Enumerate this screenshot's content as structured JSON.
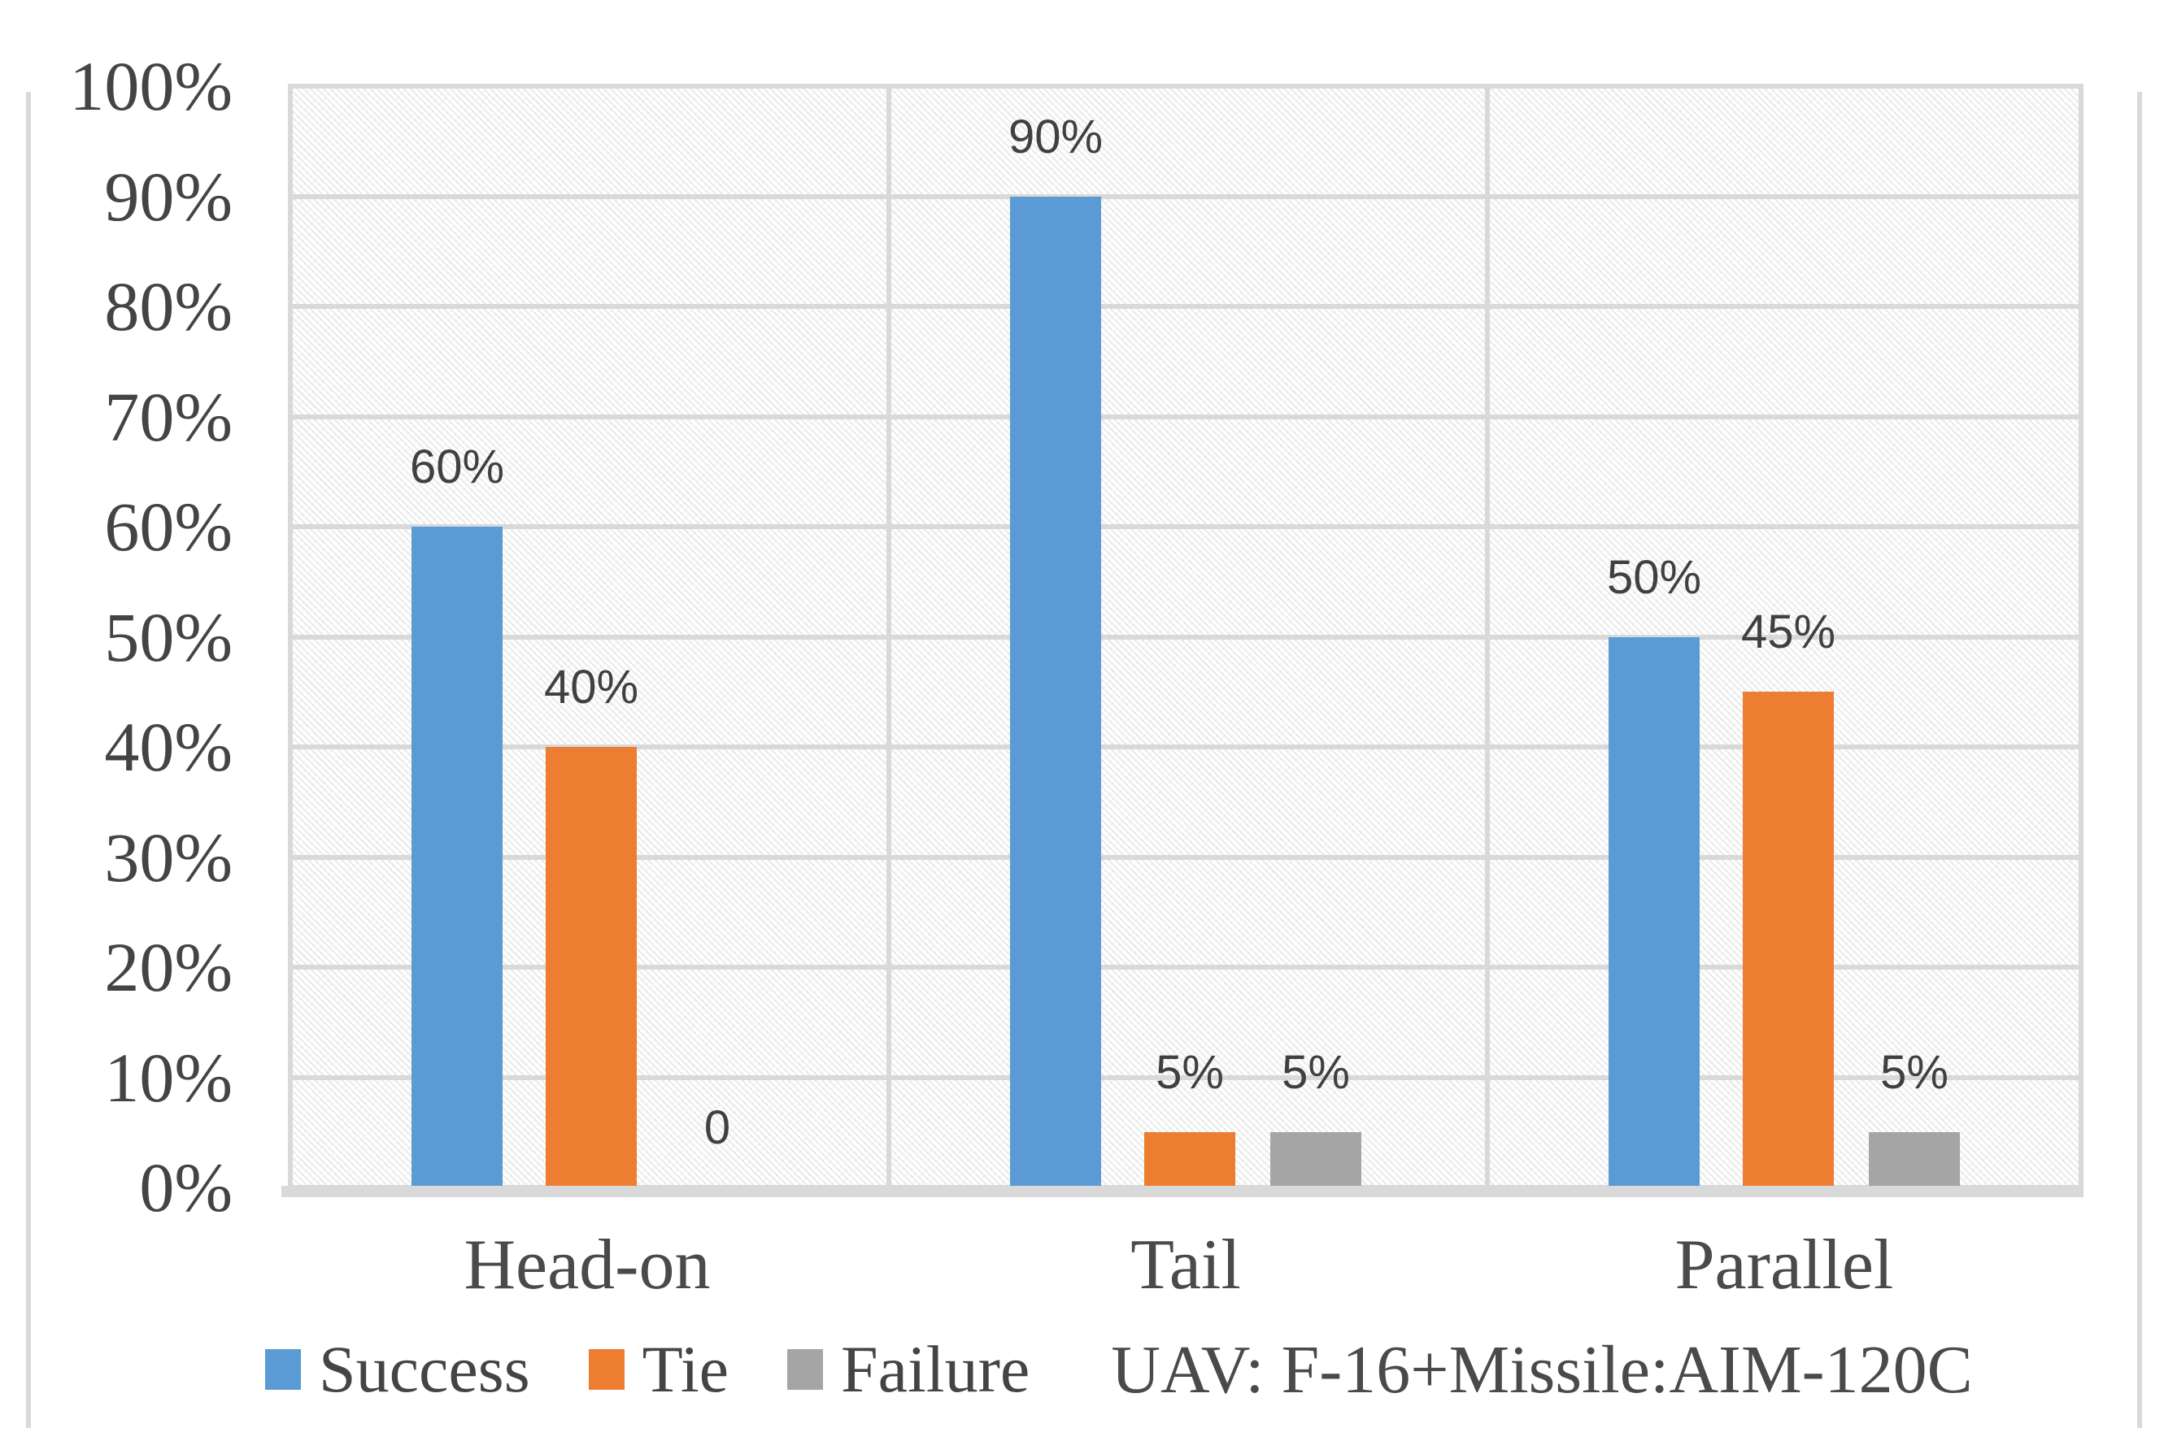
{
  "chart_data": {
    "type": "bar",
    "title": "",
    "categories": [
      "Head-on",
      "Tail",
      "Parallel"
    ],
    "series": [
      {
        "name": "Success",
        "color": "#5b9bd5",
        "values": [
          60,
          90,
          50
        ],
        "data_labels": [
          "60%",
          "90%",
          "50%"
        ]
      },
      {
        "name": "Tie",
        "color": "#ed7d31",
        "values": [
          40,
          5,
          45
        ],
        "data_labels": [
          "40%",
          "5%",
          "45%"
        ]
      },
      {
        "name": "Failure",
        "color": "#a5a5a5",
        "values": [
          0,
          5,
          5
        ],
        "data_labels": [
          "0",
          "5%",
          "5%"
        ]
      }
    ],
    "y_axis": {
      "min": 0,
      "max": 100,
      "step": 10,
      "tick_labels": [
        "0%",
        "10%",
        "20%",
        "30%",
        "40%",
        "50%",
        "60%",
        "70%",
        "80%",
        "90%",
        "100%"
      ]
    },
    "grid": true,
    "legend_position": "bottom",
    "legend_entries": [
      "Success",
      "Tie",
      "Failure"
    ],
    "annotation": "UAV: F-16+Missile:AIM-120C",
    "colors": {
      "success": "#5b9bd5",
      "tie": "#ed7d31",
      "failure": "#a5a5a5",
      "gridline": "#d9d9d9",
      "text": "#444444",
      "data_label_text": "#404040"
    }
  }
}
